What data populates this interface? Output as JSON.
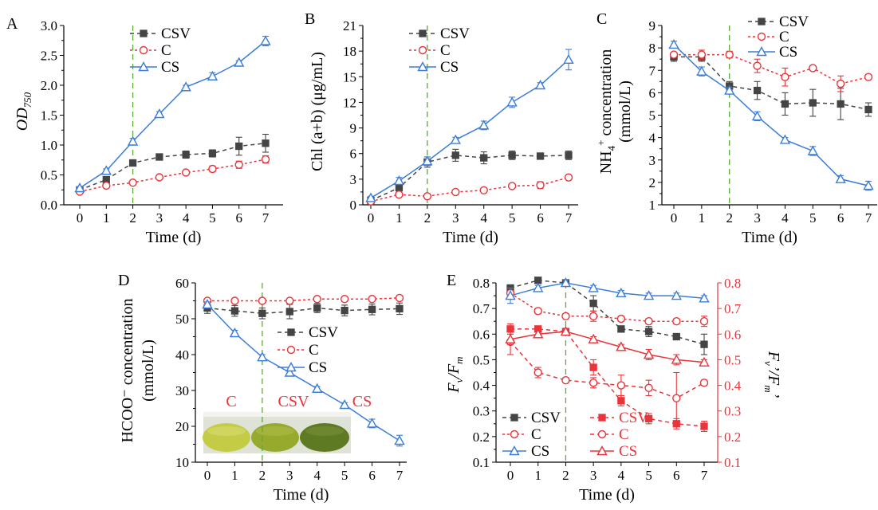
{
  "colors": {
    "CSV": "#444444",
    "C": "#e8343a",
    "CS": "#3b7dd8",
    "divider": "#5ca93a",
    "right_axis": "#e8343a"
  },
  "chart_data": [
    {
      "panel_label": "A",
      "type": "line",
      "x": [
        0,
        1,
        2,
        3,
        4,
        5,
        6,
        7
      ],
      "xlabel": "Time (d)",
      "ylabel": "OD750",
      "ylim": [
        0.0,
        3.0
      ],
      "yticks": [
        "0.0",
        "0.5",
        "1.0",
        "1.5",
        "2.0",
        "2.5",
        "3.0"
      ],
      "vline_x": 2,
      "legend": "top-center",
      "series": [
        {
          "name": "CSV",
          "values": [
            0.25,
            0.42,
            0.7,
            0.8,
            0.84,
            0.86,
            0.98,
            1.03
          ],
          "err": [
            0.03,
            0.04,
            0.05,
            0.04,
            0.06,
            0.06,
            0.15,
            0.15
          ]
        },
        {
          "name": "C",
          "values": [
            0.22,
            0.32,
            0.37,
            0.46,
            0.54,
            0.6,
            0.67,
            0.76
          ],
          "err": [
            0.02,
            0.03,
            0.03,
            0.03,
            0.03,
            0.05,
            0.06,
            0.06
          ]
        },
        {
          "name": "CS",
          "values": [
            0.28,
            0.57,
            1.06,
            1.52,
            1.97,
            2.15,
            2.38,
            2.74
          ],
          "err": [
            0.02,
            0.03,
            0.05,
            0.04,
            0.03,
            0.06,
            0.03,
            0.08
          ]
        }
      ]
    },
    {
      "panel_label": "B",
      "type": "line",
      "x": [
        0,
        1,
        2,
        3,
        4,
        5,
        6,
        7
      ],
      "xlabel": "Time (d)",
      "ylabel": "Chl (a+b) (μg/mL)",
      "ylim": [
        0,
        21
      ],
      "yticks": [
        "0",
        "3",
        "6",
        "9",
        "12",
        "15",
        "18",
        "21"
      ],
      "vline_x": 2,
      "legend": "top-center",
      "series": [
        {
          "name": "CSV",
          "values": [
            0.5,
            2.0,
            5.0,
            5.8,
            5.5,
            5.8,
            5.7,
            5.8
          ],
          "err": [
            0.2,
            0.3,
            0.6,
            0.7,
            0.7,
            0.5,
            0.3,
            0.5
          ]
        },
        {
          "name": "C",
          "values": [
            0.4,
            1.2,
            1.0,
            1.5,
            1.7,
            2.2,
            2.3,
            3.2
          ],
          "err": [
            0.1,
            0.2,
            0.2,
            0.2,
            0.2,
            0.2,
            0.4,
            0.2
          ]
        },
        {
          "name": "CS",
          "values": [
            0.8,
            2.8,
            5.1,
            7.6,
            9.3,
            12.0,
            14.0,
            17.0
          ],
          "err": [
            0.2,
            0.4,
            0.5,
            0.3,
            0.5,
            0.6,
            0.3,
            1.2
          ]
        }
      ]
    },
    {
      "panel_label": "C",
      "type": "line",
      "x": [
        0,
        1,
        2,
        3,
        4,
        5,
        6,
        7
      ],
      "xlabel": "Time (d)",
      "ylabel_line1": "NH4+ concentration",
      "ylabel_line2": "(mmol/L)",
      "ylim": [
        1,
        9
      ],
      "yticks": [
        "1",
        "2",
        "3",
        "4",
        "5",
        "6",
        "7",
        "8",
        "9"
      ],
      "vline_x": 2,
      "legend": "top-right",
      "series": [
        {
          "name": "CSV",
          "values": [
            7.6,
            7.6,
            6.3,
            6.1,
            5.5,
            5.55,
            5.5,
            5.25
          ],
          "err": [
            0.2,
            0.2,
            0.2,
            0.4,
            0.5,
            0.6,
            0.7,
            0.3
          ]
        },
        {
          "name": "C",
          "values": [
            7.7,
            7.7,
            7.7,
            7.2,
            6.7,
            7.1,
            6.4,
            6.7
          ],
          "err": [
            0.1,
            0.2,
            0.15,
            0.3,
            0.4,
            0.1,
            0.35,
            0.1
          ]
        },
        {
          "name": "CS",
          "values": [
            8.15,
            6.95,
            6.1,
            4.95,
            3.9,
            3.4,
            2.15,
            1.85
          ],
          "err": [
            0.15,
            0.2,
            0.15,
            0.2,
            0.1,
            0.2,
            0.15,
            0.2
          ]
        }
      ]
    },
    {
      "panel_label": "D",
      "type": "line",
      "x": [
        0,
        1,
        2,
        3,
        4,
        5,
        6,
        7
      ],
      "xlabel": "Time (d)",
      "ylabel_line1": "HCOO⁻ concentration",
      "ylabel_line2": "(mmol/L)",
      "ylim": [
        10,
        60
      ],
      "yticks": [
        "10",
        "20",
        "30",
        "40",
        "50",
        "60"
      ],
      "vline_x": 2,
      "legend": "middle-right",
      "photo_labels": [
        "C",
        "CSV",
        "CS"
      ],
      "series": [
        {
          "name": "CSV",
          "values": [
            53.0,
            52.2,
            51.5,
            52.0,
            53.0,
            52.3,
            52.6,
            52.8
          ],
          "err": [
            1.5,
            1.5,
            1.5,
            2.0,
            1.3,
            1.5,
            1.5,
            1.6
          ]
        },
        {
          "name": "C",
          "values": [
            55.0,
            55.0,
            55.0,
            55.0,
            55.5,
            55.5,
            55.5,
            55.8
          ],
          "err": [
            0.6,
            0.5,
            0.5,
            0.5,
            0.5,
            0.5,
            0.5,
            0.5
          ]
        },
        {
          "name": "CS",
          "values": [
            54.0,
            46.0,
            39.3,
            35.0,
            30.5,
            26.0,
            20.8,
            16.0
          ],
          "err": [
            0.7,
            0.8,
            0.7,
            0.6,
            0.6,
            0.6,
            1.2,
            1.5
          ]
        }
      ]
    },
    {
      "panel_label": "E",
      "type": "line",
      "x": [
        0,
        1,
        2,
        3,
        4,
        5,
        6,
        7
      ],
      "xlabel": "Time (d)",
      "ylabel_left": "Fv/Fm",
      "ylabel_right": "Fv'/Fm'",
      "ylim": [
        0.1,
        0.8
      ],
      "ylim_right": [
        0.1,
        0.8
      ],
      "yticks": [
        "0.1",
        "0.2",
        "0.3",
        "0.4",
        "0.5",
        "0.6",
        "0.7",
        "0.8"
      ],
      "vline_x": 2,
      "legend": "bottom-left",
      "series": [
        {
          "name": "CSV",
          "axis": "left",
          "values": [
            0.78,
            0.81,
            0.8,
            0.72,
            0.62,
            0.61,
            0.59,
            0.56
          ],
          "err": [
            0.01,
            0.01,
            0.01,
            0.03,
            0.01,
            0.02,
            0.01,
            0.04
          ]
        },
        {
          "name": "C",
          "axis": "left",
          "values": [
            0.76,
            0.69,
            0.67,
            0.67,
            0.66,
            0.65,
            0.65,
            0.65
          ],
          "err": [
            0.01,
            0.01,
            0.01,
            0.02,
            0.01,
            0.01,
            0.01,
            0.02
          ]
        },
        {
          "name": "CS",
          "axis": "left",
          "values": [
            0.75,
            0.78,
            0.8,
            0.78,
            0.76,
            0.75,
            0.75,
            0.74
          ],
          "err": [
            0.03,
            0.01,
            0.01,
            0.01,
            0.01,
            0.01,
            0.01,
            0.01
          ]
        },
        {
          "name": "CSV",
          "axis": "right",
          "values": [
            0.62,
            0.62,
            0.61,
            0.47,
            0.34,
            0.27,
            0.25,
            0.24
          ],
          "err": [
            0.02,
            0.01,
            0.01,
            0.03,
            0.02,
            0.02,
            0.02,
            0.02
          ]
        },
        {
          "name": "C",
          "axis": "right",
          "values": [
            0.57,
            0.45,
            0.42,
            0.41,
            0.4,
            0.39,
            0.35,
            0.41
          ],
          "err": [
            0.05,
            0.02,
            0.01,
            0.02,
            0.04,
            0.03,
            0.1,
            0.01
          ]
        },
        {
          "name": "CS",
          "axis": "right",
          "values": [
            0.58,
            0.6,
            0.61,
            0.58,
            0.55,
            0.52,
            0.5,
            0.49
          ],
          "err": [
            0.02,
            0.01,
            0.01,
            0.01,
            0.01,
            0.02,
            0.02,
            0.01
          ]
        }
      ]
    }
  ]
}
